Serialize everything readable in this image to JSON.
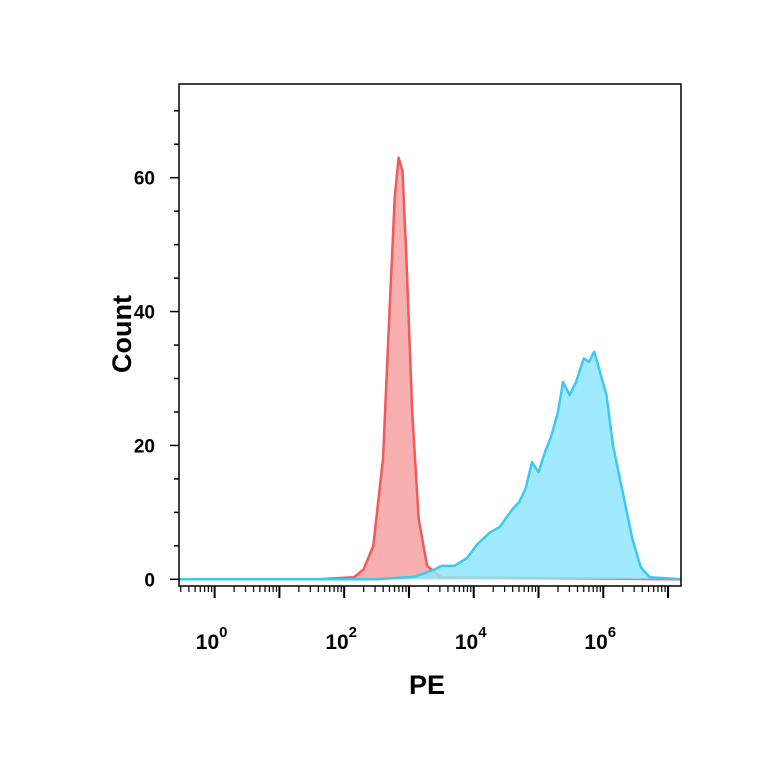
{
  "chart_data": {
    "type": "area",
    "xlabel": "PE",
    "ylabel": "Count",
    "xscale": "log10",
    "xlim_exponent": [
      -0.55,
      7.2
    ],
    "ylim": [
      -1,
      74
    ],
    "y_ticks": [
      {
        "value": 0,
        "label": "0"
      },
      {
        "value": 20,
        "label": "20"
      },
      {
        "value": 40,
        "label": "40"
      },
      {
        "value": 60,
        "label": "60"
      }
    ],
    "x_ticks": [
      {
        "exp": 0,
        "base": "10",
        "power": "0"
      },
      {
        "exp": 2,
        "base": "10",
        "power": "2"
      },
      {
        "exp": 4,
        "base": "10",
        "power": "4"
      },
      {
        "exp": 6,
        "base": "10",
        "power": "6"
      }
    ],
    "grid": false,
    "legend": "none",
    "series": [
      {
        "fill": "#f7a1a1",
        "stroke": "#ef5a5a",
        "points": [
          [
            -0.55,
            0
          ],
          [
            1.6,
            0
          ],
          [
            2.15,
            0.3
          ],
          [
            2.3,
            1.5
          ],
          [
            2.45,
            5
          ],
          [
            2.6,
            18
          ],
          [
            2.7,
            40
          ],
          [
            2.78,
            57
          ],
          [
            2.84,
            63
          ],
          [
            2.9,
            61
          ],
          [
            2.96,
            48
          ],
          [
            3.05,
            25
          ],
          [
            3.15,
            9
          ],
          [
            3.28,
            2
          ],
          [
            3.5,
            0.3
          ],
          [
            7.2,
            0
          ]
        ]
      },
      {
        "fill": "#8ee6fb",
        "stroke": "#3ec8ef",
        "points": [
          [
            -0.55,
            0
          ],
          [
            2.5,
            0
          ],
          [
            3.1,
            0.4
          ],
          [
            3.4,
            1.5
          ],
          [
            3.5,
            2
          ],
          [
            3.7,
            2
          ],
          [
            3.9,
            3.2
          ],
          [
            4.05,
            5.2
          ],
          [
            4.25,
            7
          ],
          [
            4.4,
            7.8
          ],
          [
            4.6,
            10.5
          ],
          [
            4.7,
            11.5
          ],
          [
            4.8,
            13.5
          ],
          [
            4.9,
            17.5
          ],
          [
            5.0,
            16
          ],
          [
            5.1,
            19
          ],
          [
            5.2,
            21.5
          ],
          [
            5.3,
            25
          ],
          [
            5.38,
            29.5
          ],
          [
            5.48,
            27.5
          ],
          [
            5.58,
            29.5
          ],
          [
            5.7,
            33
          ],
          [
            5.78,
            32.5
          ],
          [
            5.86,
            34
          ],
          [
            5.92,
            32
          ],
          [
            6.05,
            27.5
          ],
          [
            6.15,
            20
          ],
          [
            6.3,
            13
          ],
          [
            6.45,
            6
          ],
          [
            6.58,
            1.8
          ],
          [
            6.72,
            0.3
          ],
          [
            7.2,
            0
          ]
        ]
      }
    ]
  }
}
